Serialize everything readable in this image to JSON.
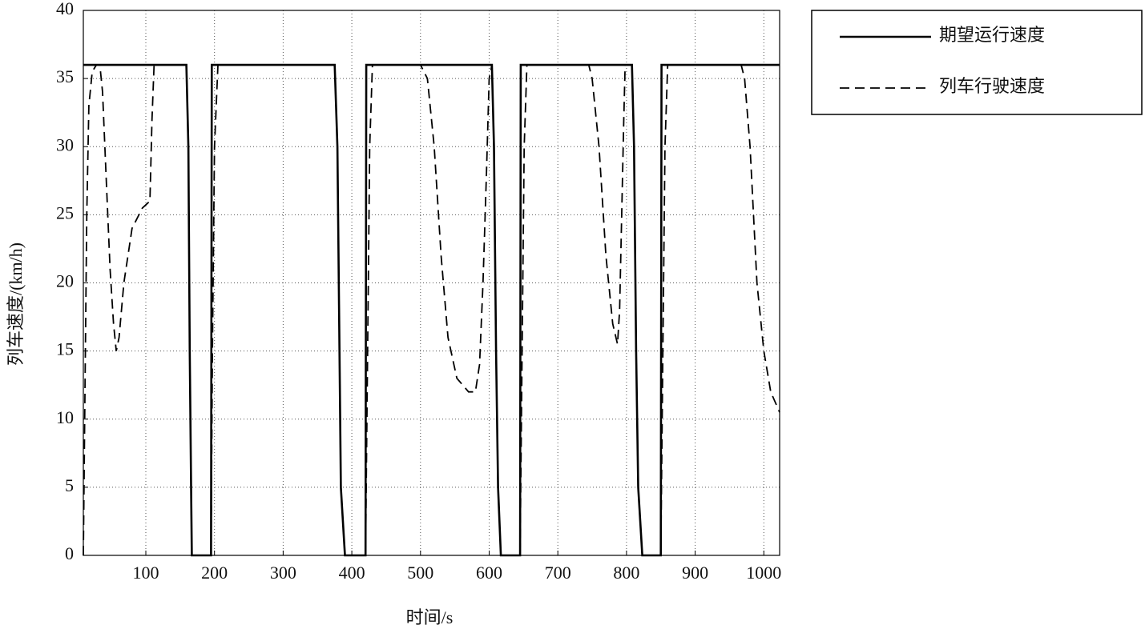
{
  "chart_data": {
    "type": "line",
    "x_label": "时间/s",
    "y_label": "列车速度/(km/h)",
    "xlim": [
      9,
      1023
    ],
    "ylim": [
      0,
      40
    ],
    "xticks": [
      100,
      200,
      300,
      400,
      500,
      600,
      700,
      800,
      900,
      1000
    ],
    "yticks": [
      0,
      5,
      10,
      15,
      20,
      25,
      30,
      35,
      40
    ],
    "grid": true,
    "legend": "outside-top-right",
    "series": [
      {
        "name": "期望运行速度",
        "color": "#000000",
        "dash": "solid",
        "x": [
          9,
          159,
          162,
          164,
          166,
          167,
          195,
          196,
          375,
          379,
          382,
          384,
          390,
          420,
          421,
          604,
          607,
          610,
          613,
          617,
          645,
          646,
          808,
          811,
          814,
          817,
          823,
          850,
          851,
          1023
        ],
        "values": [
          36,
          36,
          30,
          15,
          5,
          0,
          0,
          36,
          36,
          30,
          15,
          5,
          0,
          0,
          36,
          36,
          30,
          15,
          5,
          0,
          0,
          36,
          36,
          30,
          15,
          5,
          0,
          0,
          36,
          36
        ]
      },
      {
        "name": "列车行驶速度",
        "color": "#000000",
        "dash": "dashed",
        "x": [
          9,
          11,
          14,
          17,
          22,
          28,
          33,
          37,
          42,
          48,
          53,
          57,
          61,
          68,
          80,
          95,
          106,
          109,
          112,
          159,
          162,
          164,
          166,
          167,
          195,
          197,
          200,
          205,
          375,
          379,
          382,
          384,
          390,
          420,
          423,
          426,
          430,
          500,
          505,
          510,
          520,
          530,
          540,
          553,
          570,
          575,
          580,
          586,
          591,
          596,
          600,
          604,
          607,
          610,
          613,
          617,
          645,
          648,
          651,
          655,
          745,
          750,
          760,
          770,
          780,
          787,
          790,
          793,
          796,
          798,
          808,
          811,
          814,
          817,
          823,
          850,
          853,
          856,
          860,
          967,
          972,
          980,
          990,
          1000,
          1010,
          1023
        ],
        "values": [
          0,
          10,
          25,
          33,
          35.5,
          36,
          36,
          34,
          28,
          21,
          17,
          15,
          16,
          20,
          24,
          25.5,
          26,
          32,
          36,
          36,
          30,
          15,
          5,
          0,
          0,
          15,
          30,
          36,
          36,
          30,
          15,
          5,
          0,
          0,
          15,
          30,
          36,
          36,
          35.5,
          35,
          30,
          22,
          16,
          13,
          12,
          12,
          12,
          14,
          20,
          28,
          35,
          36,
          30,
          15,
          5,
          0,
          0,
          15,
          30,
          36,
          36,
          35,
          30,
          22,
          17,
          15.5,
          18,
          25,
          32,
          36,
          36,
          30,
          15,
          5,
          0,
          0,
          15,
          30,
          36,
          36,
          35,
          30,
          20,
          15,
          12,
          10.5
        ]
      }
    ]
  }
}
